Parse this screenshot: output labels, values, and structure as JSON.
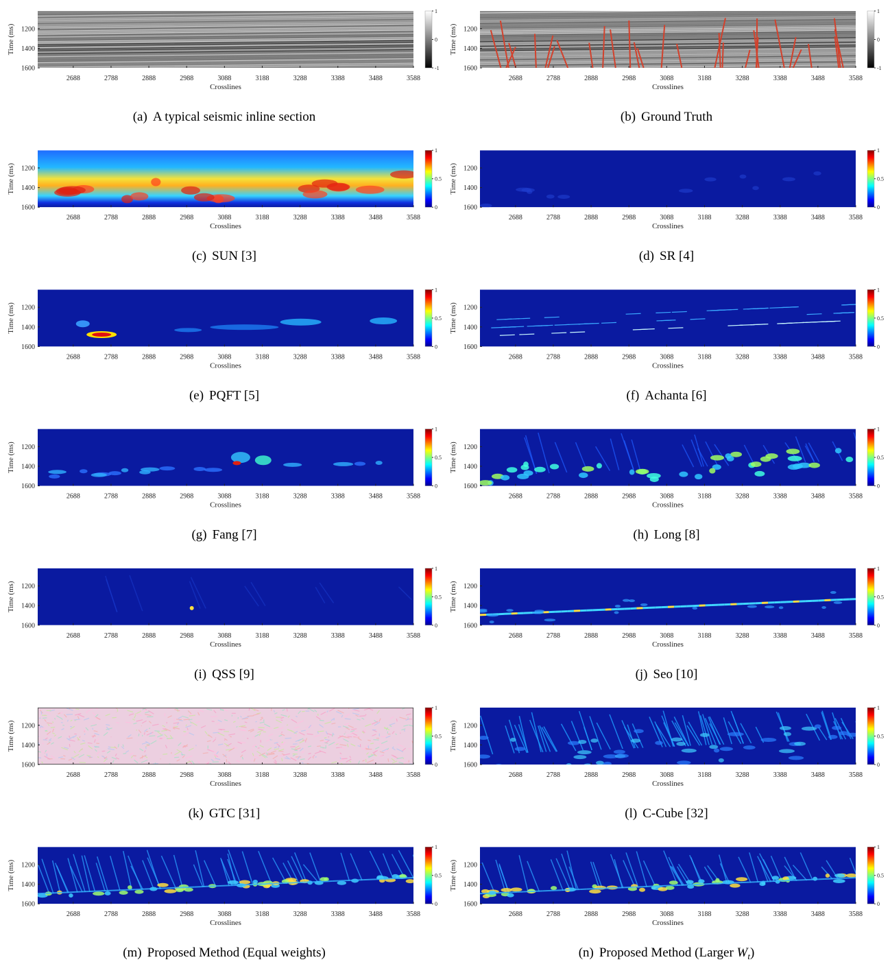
{
  "axes": {
    "x_label": "Crosslines",
    "y_label": "Time (ms)",
    "xticks": [
      2688,
      2788,
      2888,
      2988,
      3088,
      3188,
      3288,
      3388,
      3488,
      3588
    ],
    "yticks": [
      1200,
      1400,
      1600
    ],
    "xlim": [
      2594,
      3588
    ],
    "ylim": [
      1020,
      1600
    ]
  },
  "panels": [
    {
      "label": "(a)",
      "caption": "A typical seismic inline section",
      "colorbar_lim": [
        -1,
        1
      ],
      "colorbar_ticks": [
        1,
        0,
        -1
      ]
    },
    {
      "label": "(b)",
      "caption": "Ground Truth",
      "colorbar_lim": [
        -1,
        1
      ],
      "colorbar_ticks": [
        1,
        0,
        -1
      ]
    },
    {
      "label": "(c)",
      "caption": "SUN [3]",
      "colorbar_lim": [
        0,
        1
      ],
      "colorbar_ticks": [
        1,
        0.5,
        0
      ]
    },
    {
      "label": "(d)",
      "caption": "SR [4]",
      "colorbar_lim": [
        0,
        1
      ],
      "colorbar_ticks": [
        1,
        0.5,
        0
      ]
    },
    {
      "label": "(e)",
      "caption": "PQFT [5]",
      "colorbar_lim": [
        0,
        1
      ],
      "colorbar_ticks": [
        1,
        0.5,
        0
      ]
    },
    {
      "label": "(f)",
      "caption": "Achanta [6]",
      "colorbar_lim": [
        0,
        1
      ],
      "colorbar_ticks": [
        1,
        0.5,
        0
      ]
    },
    {
      "label": "(g)",
      "caption": "Fang [7]",
      "colorbar_lim": [
        0,
        1
      ],
      "colorbar_ticks": [
        1,
        0.5,
        0
      ]
    },
    {
      "label": "(h)",
      "caption": "Long [8]",
      "colorbar_lim": [
        0,
        1
      ],
      "colorbar_ticks": [
        1,
        0.5,
        0
      ]
    },
    {
      "label": "(i)",
      "caption": "QSS [9]",
      "colorbar_lim": [
        0,
        1
      ],
      "colorbar_ticks": [
        1,
        0.5,
        0
      ]
    },
    {
      "label": "(j)",
      "caption": "Seo [10]",
      "colorbar_lim": [
        0,
        1
      ],
      "colorbar_ticks": [
        1,
        0.5,
        0
      ]
    },
    {
      "label": "(k)",
      "caption": "GTC [31]",
      "colorbar_lim": [
        0,
        1
      ],
      "colorbar_ticks": [
        1,
        0.5,
        0
      ]
    },
    {
      "label": "(l)",
      "caption": "C-Cube [32]",
      "colorbar_lim": [
        0,
        1
      ],
      "colorbar_ticks": [
        1,
        0.5,
        0
      ]
    },
    {
      "label": "(m)",
      "caption": "Proposed Method (Equal weights)",
      "colorbar_lim": [
        0,
        1
      ],
      "colorbar_ticks": [
        1,
        0.5,
        0
      ]
    },
    {
      "label": "(n)",
      "caption": "Proposed Method (Larger ",
      "caption_var": "W",
      "caption_sub": "t",
      "caption_end": ")",
      "colorbar_lim": [
        0,
        1
      ],
      "colorbar_ticks": [
        1,
        0.5,
        0
      ]
    }
  ]
}
